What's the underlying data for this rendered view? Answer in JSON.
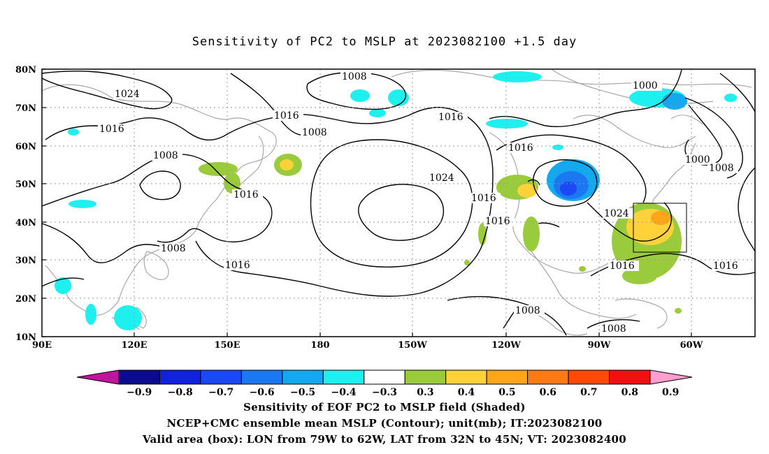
{
  "title": "Sensitivity of PC2 to MSLP at 2023082100 +1.5 day",
  "map": {
    "lat_labels": [
      "80N",
      "70N",
      "60N",
      "50N",
      "40N",
      "30N",
      "20N",
      "10N"
    ],
    "lon_labels": [
      "90E",
      "120E",
      "150E",
      "180",
      "150W",
      "120W",
      "90W",
      "60W"
    ],
    "contour_labels": [
      {
        "text": "1008"
      },
      {
        "text": "1024"
      },
      {
        "text": "1016"
      },
      {
        "text": "1016"
      },
      {
        "text": "1008"
      },
      {
        "text": "1000"
      },
      {
        "text": "1016"
      },
      {
        "text": "1008"
      },
      {
        "text": "1016"
      },
      {
        "text": "1024"
      },
      {
        "text": "1016"
      },
      {
        "text": "1000"
      },
      {
        "text": "1008"
      },
      {
        "text": "1016"
      },
      {
        "text": "1008"
      },
      {
        "text": "1024"
      },
      {
        "text": "1016"
      },
      {
        "text": "1016"
      },
      {
        "text": "1016"
      },
      {
        "text": "1016"
      },
      {
        "text": "1008"
      },
      {
        "text": "1008"
      }
    ],
    "valid_box": {
      "lon_range": [
        "79W",
        "62W"
      ],
      "lat_range": [
        "32N",
        "45N"
      ]
    }
  },
  "colorbar": {
    "labels": [
      "-0.9",
      "-0.8",
      "-0.7",
      "-0.6",
      "-0.5",
      "-0.4",
      "-0.3",
      "0.3",
      "0.4",
      "0.5",
      "0.6",
      "0.7",
      "0.8",
      "0.9"
    ],
    "colors": [
      "#0b0b8f",
      "#1122dd",
      "#1a48f5",
      "#1b78f0",
      "#14a8ee",
      "#1ef0f0",
      "#ffffff",
      "#9acb3c",
      "#ffd23a",
      "#ffa51a",
      "#ff7a14",
      "#ff4a0a",
      "#f01010"
    ],
    "low_arrow_color": "#c0149e",
    "high_arrow_color": "#ff9ecf"
  },
  "caption": {
    "line1": "Sensitivity of EOF PC2 to MSLP field (Shaded)",
    "line2": "NCEP+CMC ensemble mean MSLP (Contour); unit(mb); IT:2023082100",
    "line3": "Valid area (box): LON from 79W to 62W, LAT from 32N to 45N; VT: 2023082400"
  }
}
